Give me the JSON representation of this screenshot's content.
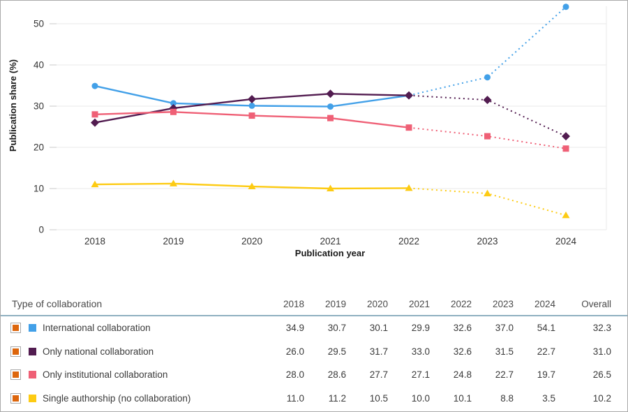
{
  "colors": {
    "international": "#42a0e8",
    "national": "#521c50",
    "institutional": "#ef6076",
    "single": "#fdcb13",
    "checkbox_fill": "#dd660d",
    "header_separator": "#8fb0c0",
    "gridline": "#eaeaea",
    "tick_mark": "#c9c9c9"
  },
  "chart_data": {
    "type": "line",
    "title": "",
    "xlabel": "Publication year",
    "ylabel": "Publication share (%)",
    "x": [
      2018,
      2019,
      2020,
      2021,
      2022,
      2023,
      2024
    ],
    "y_ticks": [
      0,
      10,
      20,
      30,
      40,
      50
    ],
    "ylim": [
      0,
      55
    ],
    "grid": "horizontal",
    "legend_position": "table-below",
    "dotted_from_index": 4,
    "series": [
      {
        "name": "International collaboration",
        "color": "#42a0e8",
        "marker": "circle",
        "values": [
          34.9,
          30.7,
          30.1,
          29.9,
          32.6,
          37.0,
          54.1
        ]
      },
      {
        "name": "Only national collaboration",
        "color": "#521c50",
        "marker": "diamond",
        "values": [
          26.0,
          29.5,
          31.7,
          33.0,
          32.6,
          31.5,
          22.7
        ]
      },
      {
        "name": "Only institutional collaboration",
        "color": "#ef6076",
        "marker": "square",
        "values": [
          28.0,
          28.6,
          27.7,
          27.1,
          24.8,
          22.7,
          19.7
        ]
      },
      {
        "name": "Single authorship (no collaboration)",
        "color": "#fdcb13",
        "marker": "triangle",
        "values": [
          11.0,
          11.2,
          10.5,
          10.0,
          10.1,
          8.8,
          3.5
        ]
      }
    ]
  },
  "table": {
    "header": {
      "label": "Type of collaboration",
      "year_columns": [
        "2018",
        "2019",
        "2020",
        "2021",
        "2022",
        "2023",
        "2024"
      ],
      "overall_label": "Overall"
    },
    "rows": [
      {
        "label": "International collaboration",
        "swatch_color": "#42a0e8",
        "checkbox_checked": true,
        "values": [
          "34.9",
          "30.7",
          "30.1",
          "29.9",
          "32.6",
          "37.0",
          "54.1"
        ],
        "overall": "32.3"
      },
      {
        "label": "Only national collaboration",
        "swatch_color": "#521c50",
        "checkbox_checked": true,
        "values": [
          "26.0",
          "29.5",
          "31.7",
          "33.0",
          "32.6",
          "31.5",
          "22.7"
        ],
        "overall": "31.0"
      },
      {
        "label": "Only institutional collaboration",
        "swatch_color": "#ef6076",
        "checkbox_checked": true,
        "values": [
          "28.0",
          "28.6",
          "27.7",
          "27.1",
          "24.8",
          "22.7",
          "19.7"
        ],
        "overall": "26.5"
      },
      {
        "label": "Single authorship (no collaboration)",
        "swatch_color": "#fdcb13",
        "checkbox_checked": true,
        "values": [
          "11.0",
          "11.2",
          "10.5",
          "10.0",
          "10.1",
          "8.8",
          "3.5"
        ],
        "overall": "10.2"
      }
    ]
  }
}
